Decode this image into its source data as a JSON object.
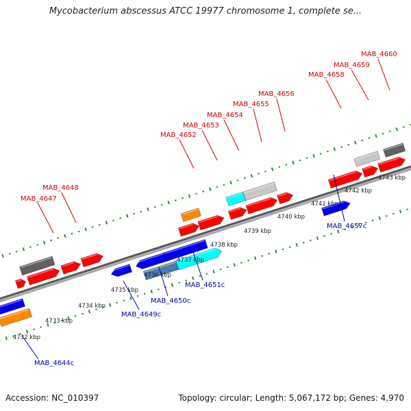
{
  "title": "Mycobacterium abscessus ATCC 19977 chromosome 1, complete se...",
  "footer": {
    "accession": "Accession: NC_010397",
    "summary": "Topology: circular; Length: 5,067,172 bp; Genes: 4,970"
  },
  "colors": {
    "forward": "#ff0000",
    "reverse": "#0000ee",
    "cyan": "#00ffff",
    "orange": "#ff8800",
    "dark_gray": "#606060",
    "light_gray": "#c8c8c8",
    "steel_blue": "#4a7ab0",
    "tick": "#2e8b2e",
    "forward_label": "#cc0000",
    "reverse_label": "#0000aa",
    "backbone": "#808080"
  },
  "scale_labels": [
    "4732 kbp",
    "4733 kbp",
    "4734 kbp",
    "4735 kbp",
    "4736 kbp",
    "4737 kbp",
    "4738 kbp",
    "4739 kbp",
    "4740 kbp",
    "4741 kbp",
    "4742 kbp",
    "4743 kbp"
  ],
  "forward_labels": [
    "MAB_4647",
    "MAB_4648",
    "MAB_4652",
    "MAB_4653",
    "MAB_4654",
    "MAB_4655",
    "MAB_4656",
    "MAB_4658",
    "MAB_4659",
    "MAB_4660"
  ],
  "reverse_labels": [
    "MAB_4644c",
    "MAB_4649c",
    "MAB_4650c",
    "MAB_4651c",
    "MAB_4657c"
  ]
}
